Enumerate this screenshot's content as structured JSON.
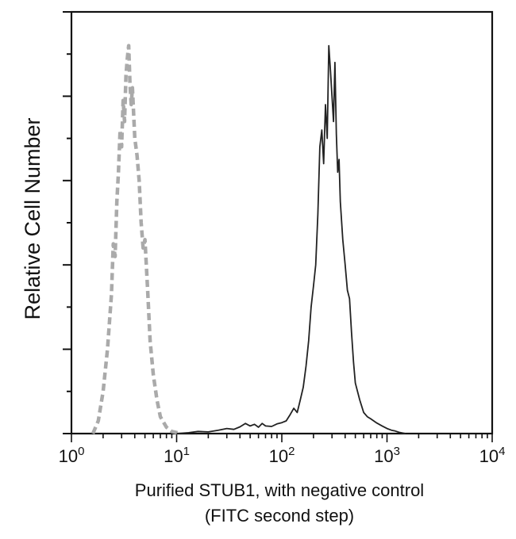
{
  "chart_data": {
    "type": "line",
    "title": "",
    "xlabel": "Purified STUB1, with negative control",
    "xlabel_line2": "(FITC second step)",
    "ylabel": "Relative Cell Number",
    "x_scale": "log",
    "xlim": [
      1,
      10000
    ],
    "ylim": [
      0,
      100
    ],
    "grid": false,
    "legend": "none",
    "x_ticks": [
      {
        "base": "10",
        "exp": "0",
        "value": 1
      },
      {
        "base": "10",
        "exp": "1",
        "value": 10
      },
      {
        "base": "10",
        "exp": "2",
        "value": 100
      },
      {
        "base": "10",
        "exp": "3",
        "value": 1000
      },
      {
        "base": "10",
        "exp": "4",
        "value": 10000
      }
    ],
    "series": [
      {
        "style": "dashed",
        "color": "#aaaaaa",
        "points": [
          [
            1.6,
            0
          ],
          [
            1.8,
            3
          ],
          [
            2.0,
            10
          ],
          [
            2.2,
            20
          ],
          [
            2.4,
            33
          ],
          [
            2.5,
            45
          ],
          [
            2.6,
            42
          ],
          [
            2.7,
            55
          ],
          [
            2.8,
            62
          ],
          [
            2.9,
            72
          ],
          [
            3.0,
            68
          ],
          [
            3.1,
            79
          ],
          [
            3.2,
            74
          ],
          [
            3.3,
            85
          ],
          [
            3.4,
            89
          ],
          [
            3.5,
            92
          ],
          [
            3.6,
            83
          ],
          [
            3.7,
            78
          ],
          [
            3.8,
            82
          ],
          [
            3.9,
            76
          ],
          [
            4.0,
            70
          ],
          [
            4.2,
            66
          ],
          [
            4.4,
            60
          ],
          [
            4.6,
            50
          ],
          [
            4.8,
            44
          ],
          [
            5.0,
            46
          ],
          [
            5.3,
            34
          ],
          [
            5.6,
            22
          ],
          [
            6.0,
            14
          ],
          [
            6.5,
            8
          ],
          [
            7.0,
            4
          ],
          [
            8.0,
            1.5
          ],
          [
            9.0,
            0.5
          ],
          [
            11,
            0
          ]
        ]
      },
      {
        "style": "solid",
        "color": "#222222",
        "points": [
          [
            10,
            0
          ],
          [
            13,
            0.2
          ],
          [
            16,
            0.5
          ],
          [
            20,
            0.4
          ],
          [
            25,
            0.8
          ],
          [
            30,
            1.2
          ],
          [
            35,
            1.0
          ],
          [
            40,
            1.6
          ],
          [
            45,
            2.4
          ],
          [
            50,
            1.8
          ],
          [
            55,
            2.2
          ],
          [
            60,
            1.5
          ],
          [
            65,
            2.4
          ],
          [
            70,
            1.8
          ],
          [
            80,
            1.7
          ],
          [
            90,
            2.3
          ],
          [
            100,
            2.6
          ],
          [
            110,
            3.0
          ],
          [
            120,
            4.5
          ],
          [
            130,
            6.0
          ],
          [
            140,
            5.0
          ],
          [
            150,
            8.0
          ],
          [
            160,
            11
          ],
          [
            170,
            16
          ],
          [
            180,
            22
          ],
          [
            190,
            30
          ],
          [
            200,
            35
          ],
          [
            210,
            40
          ],
          [
            220,
            52
          ],
          [
            230,
            68
          ],
          [
            240,
            72
          ],
          [
            250,
            64
          ],
          [
            260,
            78
          ],
          [
            270,
            70
          ],
          [
            280,
            92
          ],
          [
            290,
            86
          ],
          [
            300,
            80
          ],
          [
            310,
            74
          ],
          [
            320,
            88
          ],
          [
            330,
            71
          ],
          [
            340,
            62
          ],
          [
            350,
            65
          ],
          [
            360,
            55
          ],
          [
            380,
            46
          ],
          [
            400,
            40
          ],
          [
            420,
            34
          ],
          [
            440,
            32
          ],
          [
            460,
            24
          ],
          [
            480,
            17
          ],
          [
            500,
            12
          ],
          [
            550,
            8
          ],
          [
            600,
            5
          ],
          [
            650,
            4
          ],
          [
            700,
            3.5
          ],
          [
            800,
            2.5
          ],
          [
            900,
            1.8
          ],
          [
            1000,
            1.2
          ],
          [
            1100,
            0.8
          ],
          [
            1200,
            0.6
          ],
          [
            1300,
            0.3
          ],
          [
            1500,
            0
          ]
        ]
      }
    ]
  }
}
